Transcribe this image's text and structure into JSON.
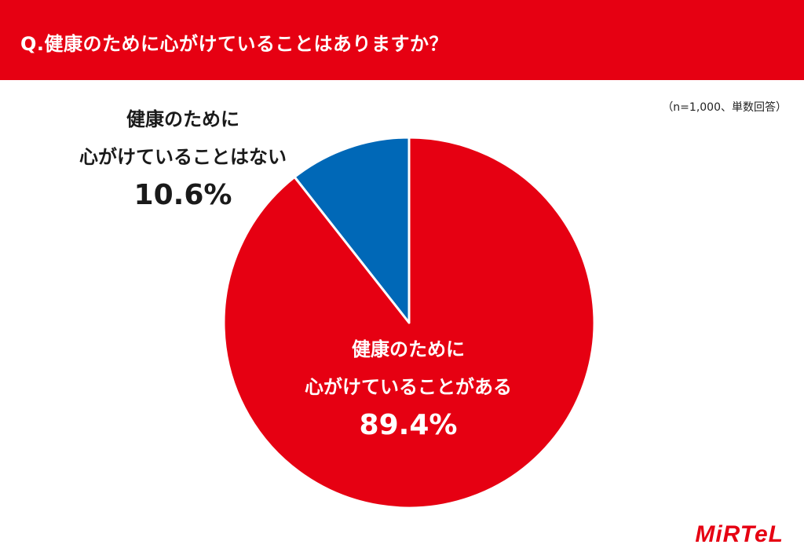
{
  "header": {
    "title": "Q.健康のために心がけていることはありますか？"
  },
  "note": "（n=1,000、単数回答）",
  "colors": {
    "accent": "#e60012",
    "secondary": "#0068b7"
  },
  "labels": {
    "no": {
      "line1": "健康のために",
      "line2": "心がけていることはない",
      "pct": "10.6%"
    },
    "yes": {
      "line1": "健康のために",
      "line2": "心がけていることがある",
      "pct": "89.4%"
    }
  },
  "logo": "MiRTeL",
  "chart_data": {
    "type": "pie",
    "slices": [
      {
        "label": "健康のために心がけていることがある",
        "value": 89.4,
        "color": "#e60012"
      },
      {
        "label": "健康のために心がけていることはない",
        "value": 10.6,
        "color": "#0068b7"
      }
    ]
  }
}
